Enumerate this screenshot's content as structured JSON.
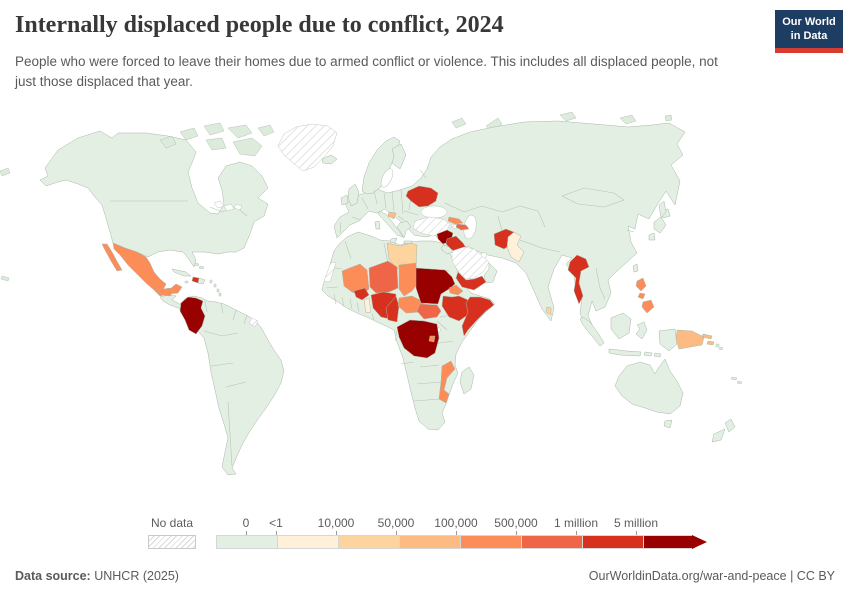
{
  "header": {
    "title": "Internally displaced people due to conflict, 2024",
    "subtitle": "People who were forced to leave their homes due to armed conflict or violence. This includes all displaced people, not just those displaced that year.",
    "logo": {
      "line1": "Our World",
      "line2": "in Data",
      "bg_color": "#1d3d63",
      "accent_color": "#d73c32"
    }
  },
  "legend": {
    "no_data_label": "No data",
    "tick_labels": [
      "0",
      "<1",
      "10,000",
      "50,000",
      "100,000",
      "500,000",
      "1 million",
      "5 million"
    ]
  },
  "footer": {
    "source_label": "Data source:",
    "source_value": "UNHCR (2025)",
    "link": "OurWorldinData.org/war-and-peace",
    "divider": "|",
    "license": "CC BY"
  },
  "chart_data": {
    "type": "choropleth",
    "title": "Internally displaced people due to conflict, 2024",
    "year": 2024,
    "unit": "people internally displaced",
    "source": "UNHCR (2025)",
    "legend_position": "bottom",
    "default_bin": 0,
    "bins": [
      {
        "label": "0",
        "color": "#e3efe3"
      },
      {
        "label": "<1 to 10,000",
        "color": "#fef0d9"
      },
      {
        "label": "10,000 to 50,000",
        "color": "#fdd49e"
      },
      {
        "label": "50,000 to 100,000",
        "color": "#fdbb84"
      },
      {
        "label": "100,000 to 500,000",
        "color": "#fc8d59"
      },
      {
        "label": "500,000 to 1 million",
        "color": "#ef6548"
      },
      {
        "label": "1 million to 5 million",
        "color": "#d7301f"
      },
      {
        "label": "more than 5 million",
        "color": "#990000"
      }
    ],
    "no_data_countries": [
      "Greenland",
      "Turkey",
      "Armenia",
      "Saudi Arabia",
      "Western Sahara",
      "French Guiana"
    ],
    "country_bins": {
      "sudan": 7,
      "democratic-republic-of-congo": 7,
      "syria": 7,
      "colombia": 7,
      "ukraine": 6,
      "myanmar": 6,
      "afghanistan": 6,
      "ethiopia": 6,
      "somalia": 6,
      "nigeria": 6,
      "yemen": 6,
      "iraq": 6,
      "burkina-faso": 6,
      "cameroon": 6,
      "haiti": 6,
      "niger": 5,
      "south-sudan": 5,
      "azerbaijan": 5,
      "mexico": 4,
      "honduras": 4,
      "mali": 4,
      "chad": 4,
      "central-african-republic": 4,
      "eritrea": 4,
      "mozambique": 4,
      "burundi": 4,
      "georgia": 4,
      "philippines": 4,
      "bosnia-and-herzegovina": 3,
      "papua-new-guinea": 3,
      "libya": 2,
      "sri-lanka": 2,
      "pakistan": 1,
      "benin": 1,
      "greenland": "no-data",
      "turkey": "no-data",
      "armenia": "no-data",
      "saudi-arabia": "no-data",
      "western-sahara": "no-data",
      "french-guiana": "no-data"
    }
  }
}
